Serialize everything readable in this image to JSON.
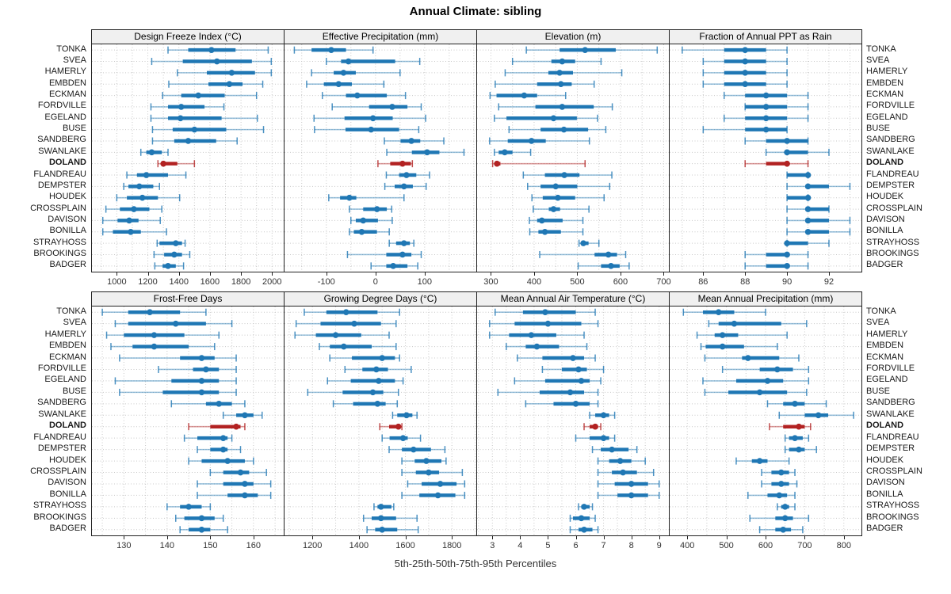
{
  "title": "Annual Climate: sibling",
  "footer": "5th-25th-50th-75th-95th Percentiles",
  "highlight_station": "DOLAND",
  "percentiles": [
    5,
    25,
    50,
    75,
    95
  ],
  "colors": {
    "series": "#1f77b4",
    "highlight": "#b22222",
    "grid": "#c9c9c9",
    "panel_border": "#222222",
    "header_bg": "#f0f0f0",
    "label_text": "#1a1a1a",
    "tick_text": "#333333"
  },
  "stations": [
    "TONKA",
    "SVEA",
    "HAMERLY",
    "EMBDEN",
    "ECKMAN",
    "FORDVILLE",
    "EGELAND",
    "BUSE",
    "SANDBERG",
    "SWANLAKE",
    "DOLAND",
    "FLANDREAU",
    "DEMPSTER",
    "HOUDEK",
    "CROSSPLAIN",
    "DAVISON",
    "BONILLA",
    "STRAYHOSS",
    "BROOKINGS",
    "BADGER"
  ],
  "chart_data": [
    {
      "type": "dotplot-percentile",
      "title": "Design Freeze Index (°C)",
      "xlim": [
        840,
        2075
      ],
      "ticks": [
        1000,
        1200,
        1400,
        1600,
        1800,
        2000
      ],
      "tick_labels": [
        "1000",
        "1200",
        "1400",
        "1600",
        "1800",
        "2000"
      ],
      "grid_step": 100,
      "values": [
        [
          1330,
          1460,
          1610,
          1765,
          1975
        ],
        [
          1225,
          1425,
          1645,
          1870,
          1995
        ],
        [
          1390,
          1580,
          1740,
          1890,
          1995
        ],
        [
          1335,
          1590,
          1725,
          1810,
          1940
        ],
        [
          1295,
          1415,
          1525,
          1695,
          1900
        ],
        [
          1220,
          1330,
          1415,
          1565,
          1690
        ],
        [
          1220,
          1330,
          1410,
          1675,
          1905
        ],
        [
          1230,
          1360,
          1500,
          1705,
          1945
        ],
        [
          1230,
          1370,
          1460,
          1640,
          1775
        ],
        [
          1155,
          1190,
          1225,
          1290,
          1330
        ],
        [
          1265,
          1290,
          1300,
          1390,
          1500
        ],
        [
          1065,
          1130,
          1190,
          1330,
          1445
        ],
        [
          1045,
          1075,
          1145,
          1235,
          1275
        ],
        [
          1000,
          1065,
          1165,
          1265,
          1405
        ],
        [
          930,
          1020,
          1110,
          1210,
          1290
        ],
        [
          910,
          1005,
          1080,
          1140,
          1280
        ],
        [
          910,
          975,
          1090,
          1155,
          1320
        ],
        [
          1260,
          1275,
          1380,
          1420,
          1440
        ],
        [
          1240,
          1305,
          1370,
          1420,
          1470
        ],
        [
          1245,
          1295,
          1330,
          1380,
          1430
        ]
      ]
    },
    {
      "type": "dotplot-percentile",
      "title": "Effective Precipitation (mm)",
      "xlim": [
        -185,
        205
      ],
      "ticks": [
        -100,
        0,
        100
      ],
      "tick_labels": [
        "-100",
        "0",
        "100"
      ],
      "grid_step": 50,
      "values": [
        [
          -165,
          -130,
          -90,
          -60,
          -5
        ],
        [
          -100,
          -70,
          -55,
          40,
          90
        ],
        [
          -130,
          -85,
          -65,
          -40,
          50
        ],
        [
          -140,
          -105,
          -75,
          -48,
          17
        ],
        [
          -108,
          -60,
          -37,
          23,
          61
        ],
        [
          -88,
          -13,
          34,
          65,
          93
        ],
        [
          -125,
          -63,
          -5,
          35,
          102
        ],
        [
          -124,
          -61,
          -9,
          48,
          88
        ],
        [
          18,
          51,
          73,
          91,
          139
        ],
        [
          23,
          74,
          105,
          130,
          180
        ],
        [
          5,
          30,
          55,
          72,
          75
        ],
        [
          22,
          48,
          63,
          83,
          110
        ],
        [
          19,
          39,
          58,
          76,
          103
        ],
        [
          -95,
          -72,
          -53,
          -39,
          58
        ],
        [
          -53,
          -25,
          3,
          23,
          33
        ],
        [
          -50,
          -40,
          -25,
          5,
          34
        ],
        [
          -53,
          -44,
          -28,
          3,
          28
        ],
        [
          28,
          42,
          58,
          70,
          78
        ],
        [
          -57,
          22,
          55,
          73,
          93
        ],
        [
          -9,
          22,
          36,
          65,
          86
        ]
      ]
    },
    {
      "type": "dotplot-percentile",
      "title": "Elevation (m)",
      "xlim": [
        268,
        712
      ],
      "ticks": [
        300,
        400,
        500,
        600,
        700
      ],
      "tick_labels": [
        "300",
        "400",
        "500",
        "600",
        "700"
      ],
      "grid_step": 50,
      "values": [
        [
          382,
          459,
          518,
          589,
          685
        ],
        [
          350,
          440,
          465,
          495,
          555
        ],
        [
          333,
          433,
          459,
          490,
          603
        ],
        [
          310,
          407,
          462,
          487,
          539
        ],
        [
          298,
          313,
          377,
          407,
          473
        ],
        [
          318,
          403,
          465,
          538,
          581
        ],
        [
          308,
          336,
          445,
          499,
          547
        ],
        [
          342,
          415,
          469,
          525,
          566
        ],
        [
          297,
          339,
          394,
          427,
          528
        ],
        [
          308,
          318,
          332,
          350,
          392
        ],
        [
          304,
          309,
          314,
          322,
          518
        ],
        [
          375,
          425,
          470,
          505,
          580
        ],
        [
          385,
          415,
          450,
          500,
          575
        ],
        [
          395,
          420,
          455,
          495,
          562
        ],
        [
          398,
          434,
          445,
          460,
          527
        ],
        [
          389,
          407,
          418,
          466,
          513
        ],
        [
          390,
          410,
          425,
          462,
          513
        ],
        [
          504,
          509,
          514,
          526,
          550
        ],
        [
          413,
          540,
          572,
          592,
          612
        ],
        [
          502,
          555,
          578,
          598,
          620
        ]
      ]
    },
    {
      "type": "dotplot-percentile",
      "title": "Fraction of Annual PPT as Rain",
      "xlim": [
        84.4,
        93.55
      ],
      "ticks": [
        86,
        88,
        90,
        92
      ],
      "tick_labels": [
        "86",
        "88",
        "90",
        "92"
      ],
      "grid_step": 1,
      "values": [
        [
          85,
          87,
          88,
          89,
          90
        ],
        [
          86,
          87,
          88,
          89,
          90
        ],
        [
          86,
          87,
          88,
          89,
          90
        ],
        [
          86,
          87,
          88,
          89,
          90
        ],
        [
          87,
          88,
          89,
          90,
          91
        ],
        [
          88,
          88,
          89,
          90,
          91
        ],
        [
          87,
          88,
          89,
          90,
          91
        ],
        [
          86,
          88,
          89,
          90,
          90
        ],
        [
          88,
          89,
          90,
          91,
          91
        ],
        [
          89,
          90,
          90,
          91,
          92
        ],
        [
          88,
          89,
          90,
          90,
          91
        ],
        [
          90,
          90,
          91,
          91,
          91
        ],
        [
          90,
          91,
          91,
          92,
          93
        ],
        [
          90,
          90,
          91,
          91,
          91
        ],
        [
          90,
          91,
          91,
          92,
          92
        ],
        [
          90,
          91,
          91,
          92,
          93
        ],
        [
          90,
          91,
          91,
          92,
          93
        ],
        [
          90,
          90,
          90,
          91,
          92
        ],
        [
          88,
          89,
          90,
          90,
          91
        ],
        [
          88,
          89,
          90,
          90,
          91
        ]
      ]
    },
    {
      "type": "dotplot-percentile",
      "title": "Frost-Free Days",
      "xlim": [
        122.6,
        167
      ],
      "ticks": [
        130,
        140,
        150,
        160
      ],
      "tick_labels": [
        "130",
        "140",
        "150",
        "160"
      ],
      "grid_step": 5,
      "values": [
        [
          125,
          131,
          136,
          143,
          149
        ],
        [
          128,
          131,
          142,
          149,
          155
        ],
        [
          126,
          130,
          137,
          144,
          152
        ],
        [
          127,
          132,
          137,
          145,
          151
        ],
        [
          129,
          143,
          148,
          151,
          156
        ],
        [
          138,
          146,
          149,
          152,
          156
        ],
        [
          128,
          141,
          148,
          152,
          156
        ],
        [
          129,
          139,
          148,
          152,
          156
        ],
        [
          141,
          149,
          152,
          155,
          158
        ],
        [
          153,
          156,
          158,
          160,
          162
        ],
        [
          145,
          150,
          156,
          157,
          158
        ],
        [
          144,
          147,
          153,
          154,
          155
        ],
        [
          147,
          150,
          153,
          154,
          157
        ],
        [
          145,
          148,
          154,
          158,
          160
        ],
        [
          150,
          153,
          157,
          159,
          163
        ],
        [
          147,
          153,
          158,
          160,
          164
        ],
        [
          147,
          154,
          158,
          161,
          164
        ],
        [
          140,
          143,
          145,
          148,
          150
        ],
        [
          142,
          144,
          148,
          151,
          153
        ],
        [
          143,
          145,
          148,
          150,
          154
        ]
      ]
    },
    {
      "type": "dotplot-percentile",
      "title": "Growing Degree Days (°C)",
      "xlim": [
        1080,
        1905
      ],
      "ticks": [
        1200,
        1400,
        1600,
        1800
      ],
      "tick_labels": [
        "1200",
        "1400",
        "1600",
        "1800"
      ],
      "grid_step": 100,
      "values": [
        [
          1165,
          1260,
          1345,
          1480,
          1575
        ],
        [
          1130,
          1235,
          1380,
          1495,
          1560
        ],
        [
          1125,
          1215,
          1300,
          1410,
          1530
        ],
        [
          1230,
          1275,
          1335,
          1455,
          1560
        ],
        [
          1275,
          1370,
          1500,
          1555,
          1575
        ],
        [
          1340,
          1415,
          1475,
          1525,
          1625
        ],
        [
          1265,
          1365,
          1485,
          1555,
          1590
        ],
        [
          1180,
          1330,
          1460,
          1505,
          1570
        ],
        [
          1290,
          1375,
          1480,
          1515,
          1565
        ],
        [
          1545,
          1565,
          1605,
          1630,
          1650
        ],
        [
          1490,
          1530,
          1570,
          1580,
          1585
        ],
        [
          1500,
          1532,
          1590,
          1610,
          1665
        ],
        [
          1530,
          1585,
          1635,
          1710,
          1770
        ],
        [
          1585,
          1640,
          1690,
          1755,
          1775
        ],
        [
          1585,
          1645,
          1700,
          1745,
          1845
        ],
        [
          1610,
          1670,
          1750,
          1820,
          1855
        ],
        [
          1585,
          1660,
          1740,
          1815,
          1855
        ],
        [
          1465,
          1480,
          1495,
          1540,
          1550
        ],
        [
          1420,
          1455,
          1495,
          1560,
          1650
        ],
        [
          1435,
          1470,
          1500,
          1565,
          1655
        ]
      ]
    },
    {
      "type": "dotplot-percentile",
      "title": "Mean Annual Air Temperature (°C)",
      "xlim": [
        2.45,
        9.35
      ],
      "ticks": [
        3,
        4,
        5,
        6,
        7,
        8,
        9
      ],
      "tick_labels": [
        "3",
        "4",
        "5",
        "6",
        "7",
        "8",
        "9"
      ],
      "grid_step": 0.5,
      "values": [
        [
          3.1,
          4.1,
          4.9,
          6.0,
          6.7
        ],
        [
          2.9,
          3.8,
          5.0,
          6.2,
          6.8
        ],
        [
          2.9,
          3.6,
          4.4,
          5.3,
          6.3
        ],
        [
          3.5,
          4.2,
          4.6,
          5.4,
          6.4
        ],
        [
          3.9,
          4.8,
          5.9,
          6.3,
          6.7
        ],
        [
          4.8,
          5.5,
          6.1,
          6.4,
          7.0
        ],
        [
          3.8,
          4.9,
          6.2,
          6.5,
          6.9
        ],
        [
          3.2,
          4.7,
          5.8,
          6.3,
          6.8
        ],
        [
          4.2,
          5.2,
          6.0,
          6.5,
          6.8
        ],
        [
          6.5,
          6.7,
          7.0,
          7.2,
          7.4
        ],
        [
          6.3,
          6.5,
          6.7,
          6.8,
          6.9
        ],
        [
          6.0,
          6.5,
          7.0,
          7.2,
          7.4
        ],
        [
          6.6,
          6.9,
          7.3,
          7.9,
          8.2
        ],
        [
          6.8,
          7.2,
          7.6,
          8.0,
          8.5
        ],
        [
          6.8,
          7.3,
          7.7,
          8.2,
          8.8
        ],
        [
          6.8,
          7.4,
          8.0,
          8.6,
          9.0
        ],
        [
          6.8,
          7.5,
          8.0,
          8.6,
          9.0
        ],
        [
          6.1,
          6.2,
          6.3,
          6.5,
          6.6
        ],
        [
          5.8,
          5.9,
          6.2,
          6.5,
          6.7
        ],
        [
          5.8,
          6.1,
          6.3,
          6.6,
          6.8
        ]
      ]
    },
    {
      "type": "dotplot-percentile",
      "title": "Mean Annual Precipitation (mm)",
      "xlim": [
        355,
        845
      ],
      "ticks": [
        400,
        500,
        600,
        700,
        800
      ],
      "tick_labels": [
        "400",
        "500",
        "600",
        "700",
        "800"
      ],
      "grid_step": 50,
      "values": [
        [
          390,
          440,
          480,
          520,
          600
        ],
        [
          455,
          480,
          520,
          640,
          705
        ],
        [
          425,
          470,
          490,
          530,
          655
        ],
        [
          435,
          447,
          490,
          545,
          630
        ],
        [
          445,
          540,
          555,
          635,
          685
        ],
        [
          490,
          585,
          630,
          670,
          710
        ],
        [
          440,
          525,
          605,
          645,
          710
        ],
        [
          445,
          505,
          585,
          655,
          705
        ],
        [
          605,
          645,
          675,
          700,
          755
        ],
        [
          635,
          700,
          735,
          760,
          825
        ],
        [
          610,
          645,
          685,
          700,
          715
        ],
        [
          650,
          660,
          675,
          695,
          710
        ],
        [
          650,
          660,
          685,
          700,
          730
        ],
        [
          525,
          565,
          585,
          605,
          660
        ],
        [
          590,
          615,
          640,
          660,
          675
        ],
        [
          590,
          615,
          640,
          660,
          680
        ],
        [
          555,
          605,
          635,
          655,
          675
        ],
        [
          630,
          640,
          650,
          660,
          675
        ],
        [
          560,
          625,
          650,
          670,
          710
        ],
        [
          585,
          625,
          645,
          665,
          695
        ]
      ]
    }
  ]
}
